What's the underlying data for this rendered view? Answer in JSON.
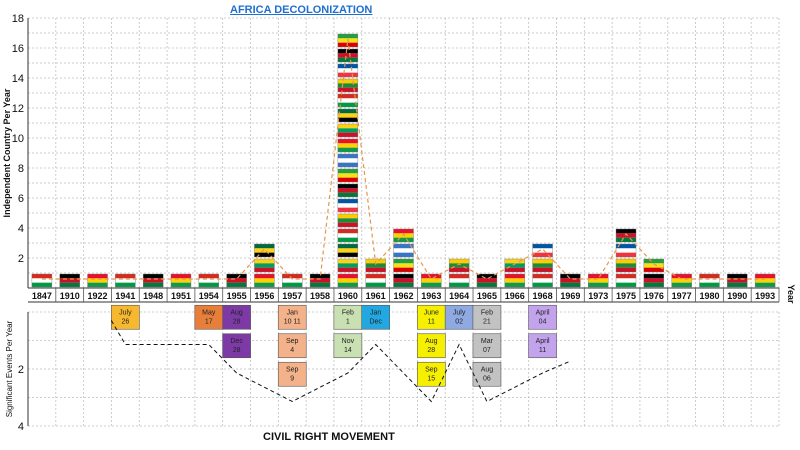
{
  "chart_data": [
    {
      "type": "line",
      "title": "AFRICA DECOLONIZATION",
      "ylabel": "Independent Country Per Year",
      "xlabel": "Year",
      "ylim": [
        0,
        18
      ],
      "yticks": [
        2,
        4,
        6,
        8,
        10,
        12,
        14,
        16,
        18
      ],
      "grid": true,
      "categories": [
        "1847",
        "1910",
        "1922",
        "1941",
        "1948",
        "1951",
        "1954",
        "1955",
        "1956",
        "1957",
        "1958",
        "1960",
        "1961",
        "1962",
        "1963",
        "1964",
        "1965",
        "1966",
        "1968",
        "1969",
        "1973",
        "1975",
        "1976",
        "1977",
        "1980",
        "1990",
        "1993"
      ],
      "values": [
        1,
        1,
        1,
        1,
        1,
        1,
        1,
        1,
        3,
        1,
        1,
        17,
        2,
        4,
        1,
        2,
        1,
        2,
        3,
        1,
        1,
        4,
        2,
        1,
        1,
        1,
        1
      ]
    },
    {
      "type": "line",
      "title": "CIVIL RIGHT MOVEMENT",
      "ylabel": "Significant Events Per Year",
      "ylim": [
        0,
        4
      ],
      "yticks": [
        2,
        4
      ],
      "grid": true,
      "events": [
        {
          "year": "1941",
          "dates": [
            "July 26"
          ],
          "colors": [
            "#f5b82e"
          ]
        },
        {
          "year": "1954",
          "dates": [
            "May 17"
          ],
          "colors": [
            "#e77f3b"
          ]
        },
        {
          "year": "1955",
          "dates": [
            "Aug 28",
            "Dec 28"
          ],
          "colors": [
            "#7d3aa6",
            "#7d3aa6"
          ]
        },
        {
          "year": "1957",
          "dates": [
            "Jan 10 11",
            "Sep 4",
            "Sep 9"
          ],
          "colors": [
            "#f3b28a",
            "#f3b28a",
            "#f3b28a"
          ]
        },
        {
          "year": "1960",
          "dates": [
            "Feb 1",
            "Nov 14"
          ],
          "colors": [
            "#c8e0b2",
            "#c8e0b2"
          ]
        },
        {
          "year": "1961",
          "dates": [
            "Jan Dec"
          ],
          "colors": [
            "#23a7e0"
          ]
        },
        {
          "year": "1963",
          "dates": [
            "June 11",
            "Aug 28",
            "Sep 15"
          ],
          "colors": [
            "#f6f000",
            "#f6f000",
            "#f6f000"
          ]
        },
        {
          "year": "1964",
          "dates": [
            "July 02"
          ],
          "colors": [
            "#8fa9e3"
          ]
        },
        {
          "year": "1965",
          "dates": [
            "Feb 21",
            "Mar 07",
            "Aug 06"
          ],
          "colors": [
            "#c2c2c2",
            "#c2c2c2",
            "#c2c2c2"
          ]
        },
        {
          "year": "1968",
          "dates": [
            "April 04",
            "April 11"
          ],
          "colors": [
            "#c2a3ec",
            "#c2a3ec"
          ]
        }
      ]
    }
  ]
}
